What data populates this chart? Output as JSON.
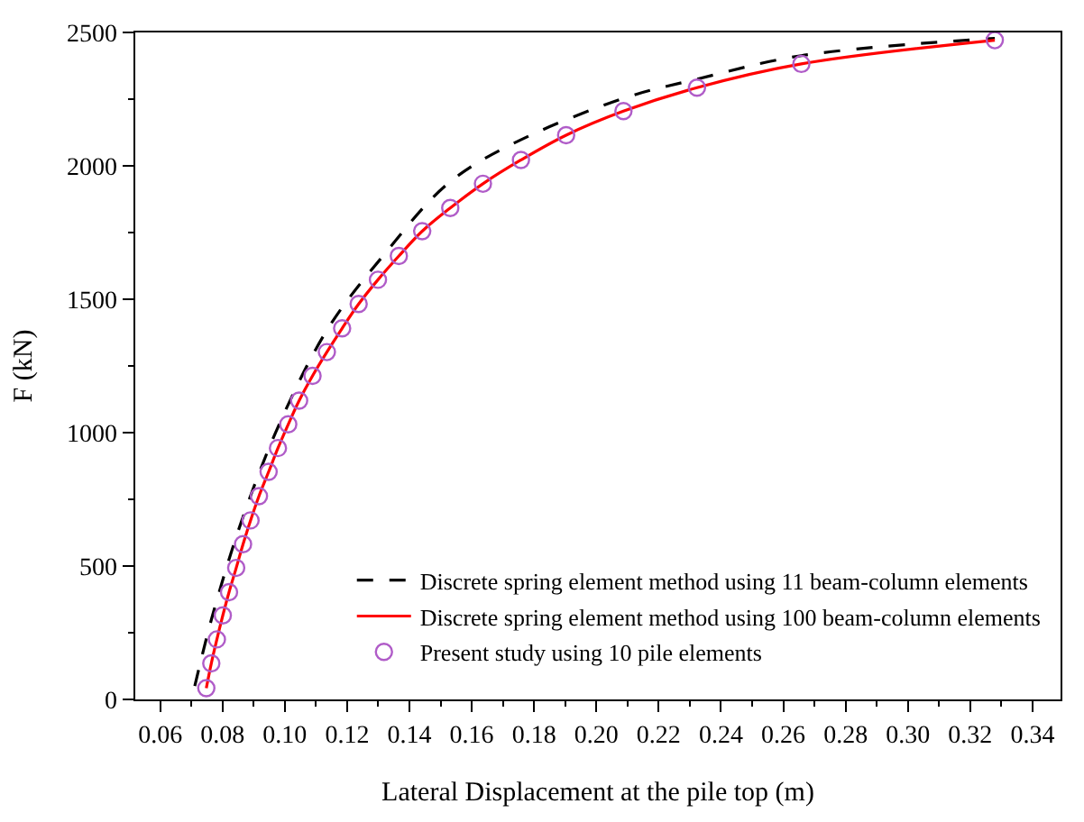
{
  "chart_data": {
    "type": "line",
    "xlabel": "Lateral Displacement at the pile top (m)",
    "ylabel": "F (kN)",
    "xlim": [
      0.052,
      0.349
    ],
    "xticks": [
      0.06,
      0.08,
      {
        "value": 0.1,
        "label": "0.10"
      },
      0.12,
      0.14,
      0.16,
      0.18,
      {
        "value": 0.2,
        "label": "0.20"
      },
      0.22,
      0.24,
      0.26,
      0.28,
      {
        "value": 0.3,
        "label": "0.30"
      },
      0.32,
      0.34
    ],
    "ylim": [
      0,
      2500
    ],
    "yticks": [
      0,
      500,
      1000,
      1500,
      2000,
      2500
    ],
    "legend": "bottom right",
    "series": [
      {
        "name": "Discrete spring element method using 11 beam-column elements",
        "color": "#000000",
        "line_style": "dashed",
        "marker": "none",
        "x": [
          0.0711,
          0.0768,
          0.0862,
          0.0982,
          0.1139,
          0.1315,
          0.1523,
          0.1727,
          0.2087,
          0.2323,
          0.2658,
          0.3279
        ],
        "values": [
          50,
          315,
          671,
          1031,
          1391,
          1662,
          1933,
          2080,
          2253,
          2325,
          2413,
          2478
        ]
      },
      {
        "name": "Discrete spring element method using 100 beam-column elements",
        "color": "#ff0000",
        "line_style": "solid",
        "marker": "none",
        "x": [
          0.0748,
          0.0764,
          0.0782,
          0.0801,
          0.0821,
          0.0844,
          0.0866,
          0.089,
          0.0917,
          0.0948,
          0.0978,
          0.1011,
          0.1046,
          0.1089,
          0.1135,
          0.1184,
          0.1237,
          0.1299,
          0.1366,
          0.1441,
          0.1531,
          0.1636,
          0.1758,
          0.1903,
          0.2087,
          0.2323,
          0.2658,
          0.3279
        ],
        "values": [
          42,
          135,
          225,
          315,
          402,
          493,
          582,
          671,
          762,
          853,
          942,
          1031,
          1120,
          1213,
          1302,
          1391,
          1482,
          1573,
          1662,
          1755,
          1842,
          1933,
          2022,
          2115,
          2205,
          2293,
          2382,
          2471
        ]
      },
      {
        "name": "Present study using 10 pile elements",
        "type": "scatter",
        "color": "#b05cc8",
        "marker": "circle",
        "x": [
          0.0748,
          0.0764,
          0.0782,
          0.0801,
          0.0821,
          0.0844,
          0.0866,
          0.089,
          0.0917,
          0.0948,
          0.0978,
          0.1011,
          0.1046,
          0.1089,
          0.1135,
          0.1184,
          0.1237,
          0.1299,
          0.1366,
          0.1441,
          0.1531,
          0.1636,
          0.1758,
          0.1903,
          0.2087,
          0.2323,
          0.2658,
          0.3279
        ],
        "values": [
          42,
          135,
          225,
          315,
          402,
          493,
          582,
          671,
          762,
          853,
          942,
          1031,
          1120,
          1213,
          1302,
          1391,
          1482,
          1573,
          1662,
          1755,
          1842,
          1933,
          2022,
          2115,
          2205,
          2293,
          2382,
          2471
        ]
      }
    ]
  }
}
